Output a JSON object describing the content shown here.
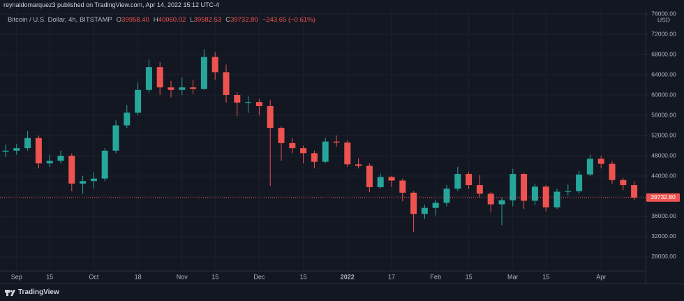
{
  "chart_data": {
    "type": "candlestick",
    "publisher_line": "reynaldomarquez3 published on TradingView.com, Apr 14, 2022 15:12 UTC-4",
    "symbol": "Bitcoin / U.S. Dollar, 4h, BITSTAMP",
    "ohlc_legend": [
      {
        "letter": "O",
        "value": "39958.40"
      },
      {
        "letter": "H",
        "value": "40060.02"
      },
      {
        "letter": "L",
        "value": "39582.53"
      },
      {
        "letter": "C",
        "value": "39732.80"
      }
    ],
    "change": "−243.65 (−0.61%)",
    "currency": "USD",
    "last_price_label": "39732.80",
    "brand": "TradingView",
    "up_color": "#26a69a",
    "down_color": "#ef5350",
    "grid": true,
    "categories": [
      null,
      "Sep",
      null,
      null,
      "15",
      null,
      null,
      null,
      "Oct",
      null,
      null,
      null,
      "18",
      null,
      null,
      null,
      "Nov",
      null,
      null,
      "15",
      null,
      null,
      null,
      "Dec",
      null,
      null,
      null,
      "15",
      null,
      null,
      null,
      "2022",
      null,
      null,
      null,
      "17",
      null,
      null,
      null,
      "Feb",
      null,
      null,
      "15",
      null,
      null,
      null,
      "Mar",
      null,
      null,
      "15",
      null,
      null,
      null,
      null,
      "Apr",
      null,
      null,
      null
    ],
    "open": [
      48800,
      49000,
      49500,
      51500,
      46500,
      47000,
      48000,
      42500,
      43000,
      43500,
      49000,
      54000,
      56500,
      61000,
      65500,
      61500,
      61000,
      61500,
      61200,
      67500,
      64500,
      60000,
      58500,
      58600,
      57800,
      53500,
      50500,
      49500,
      48500,
      46800,
      50800,
      50600,
      46300,
      46000,
      41800,
      43800,
      43100,
      40700,
      36500,
      37700,
      38700,
      41500,
      44400,
      42200,
      40500,
      38400,
      39200,
      44400,
      39100,
      41900,
      37800,
      40900,
      41000,
      44300,
      47400,
      46400,
      43200,
      42200
    ],
    "high": [
      50200,
      50300,
      52900,
      52000,
      48200,
      49000,
      48500,
      44000,
      44800,
      49500,
      55000,
      58000,
      62500,
      67000,
      66500,
      62800,
      63500,
      63000,
      69000,
      68500,
      66000,
      60500,
      59800,
      59200,
      59000,
      53800,
      51500,
      50000,
      49000,
      51500,
      52000,
      51000,
      47500,
      46500,
      44500,
      44000,
      43500,
      41000,
      38300,
      39300,
      42200,
      45800,
      44800,
      44200,
      40800,
      39800,
      45400,
      44600,
      42500,
      42200,
      41500,
      42300,
      45000,
      48200,
      48000,
      47000,
      43600,
      43000
    ],
    "low": [
      47800,
      48200,
      49000,
      45500,
      45800,
      46500,
      41000,
      40500,
      41500,
      43000,
      48500,
      53500,
      56000,
      60500,
      60000,
      59500,
      60000,
      60200,
      61000,
      63000,
      58500,
      55800,
      56500,
      56000,
      42000,
      47000,
      48500,
      46500,
      45500,
      46500,
      49800,
      45800,
      45500,
      40800,
      41500,
      41800,
      39000,
      33000,
      35500,
      36200,
      38000,
      41000,
      41500,
      39800,
      36800,
      34300,
      38000,
      37500,
      38200,
      37000,
      37500,
      40200,
      40500,
      44000,
      45500,
      42500,
      41200,
      39200
    ],
    "close": [
      49000,
      49500,
      51500,
      46500,
      47000,
      48000,
      42500,
      43000,
      43500,
      49000,
      54000,
      56500,
      61000,
      65500,
      61500,
      61000,
      61500,
      61200,
      67500,
      64500,
      60000,
      58500,
      58600,
      57800,
      53500,
      50500,
      49500,
      48500,
      46800,
      50800,
      50600,
      46300,
      46000,
      41800,
      43800,
      43100,
      40700,
      36500,
      37700,
      38700,
      41500,
      44400,
      42200,
      40500,
      38400,
      39200,
      44400,
      39100,
      41900,
      37800,
      40900,
      41000,
      44300,
      47400,
      46400,
      43200,
      42200,
      39732.8
    ],
    "ylim": [
      25240,
      76830
    ],
    "yticks": [
      {
        "value": 28000,
        "label": "28000.00"
      },
      {
        "value": 32000,
        "label": "32000.00"
      },
      {
        "value": 36000,
        "label": "36000.00"
      },
      {
        "value": 40000,
        "label": "40000.00"
      },
      {
        "value": 44000,
        "label": "44000.00"
      },
      {
        "value": 48000,
        "label": "48000.00"
      },
      {
        "value": 52000,
        "label": "52000.00"
      },
      {
        "value": 56000,
        "label": "56000.00"
      },
      {
        "value": 60000,
        "label": "60000.00"
      },
      {
        "value": 64000,
        "label": "64000.00"
      },
      {
        "value": 68000,
        "label": "68000.00"
      },
      {
        "value": 72000,
        "label": "72000.00"
      },
      {
        "value": 76000,
        "label": "76000.00"
      }
    ]
  }
}
